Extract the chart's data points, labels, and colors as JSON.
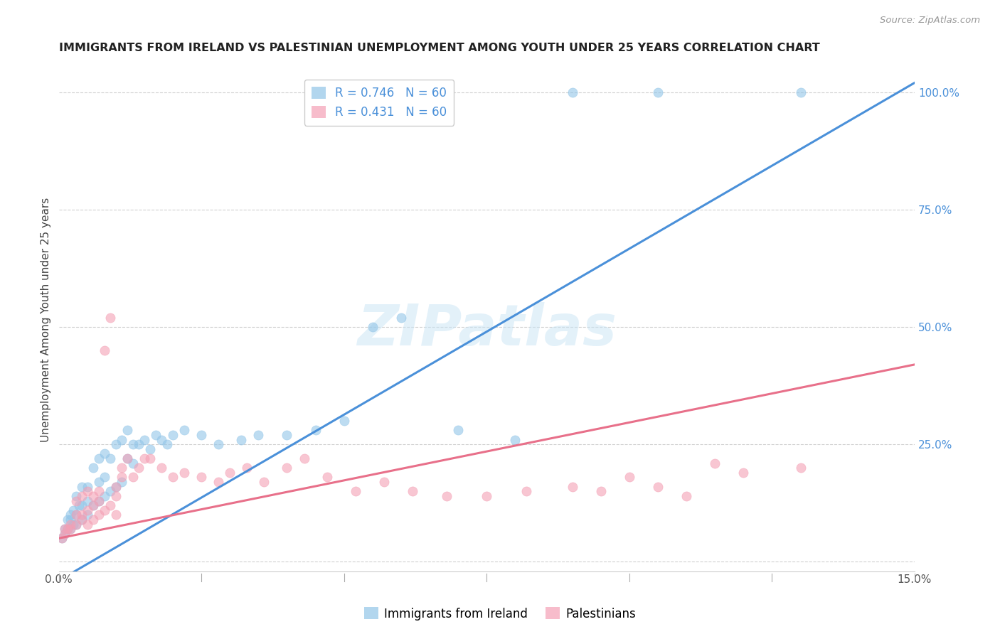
{
  "title": "IMMIGRANTS FROM IRELAND VS PALESTINIAN UNEMPLOYMENT AMONG YOUTH UNDER 25 YEARS CORRELATION CHART",
  "source": "Source: ZipAtlas.com",
  "ylabel": "Unemployment Among Youth under 25 years",
  "right_yticklabels": [
    "",
    "25.0%",
    "50.0%",
    "75.0%",
    "100.0%"
  ],
  "right_yticks": [
    0.0,
    0.25,
    0.5,
    0.75,
    1.0
  ],
  "xlim": [
    0.0,
    0.15
  ],
  "ylim": [
    -0.02,
    1.05
  ],
  "legend1_R": "0.746",
  "legend1_N": "60",
  "legend2_R": "0.431",
  "legend2_N": "60",
  "blue_color": "#92c5e8",
  "pink_color": "#f4a0b5",
  "blue_line_color": "#4a90d9",
  "pink_line_color": "#e8708a",
  "background_color": "#ffffff",
  "watermark": "ZIPatlas",
  "blue_line_x0": 0.0,
  "blue_line_y0": -0.04,
  "blue_line_x1": 0.15,
  "blue_line_y1": 1.02,
  "pink_line_x0": 0.0,
  "pink_line_y0": 0.05,
  "pink_line_x1": 0.15,
  "pink_line_y1": 0.42,
  "blue_scatter_x": [
    0.0005,
    0.001,
    0.001,
    0.0015,
    0.0015,
    0.002,
    0.002,
    0.002,
    0.0025,
    0.0025,
    0.003,
    0.003,
    0.003,
    0.0035,
    0.004,
    0.004,
    0.004,
    0.005,
    0.005,
    0.005,
    0.006,
    0.006,
    0.007,
    0.007,
    0.007,
    0.008,
    0.008,
    0.008,
    0.009,
    0.009,
    0.01,
    0.01,
    0.011,
    0.011,
    0.012,
    0.012,
    0.013,
    0.013,
    0.014,
    0.015,
    0.016,
    0.017,
    0.018,
    0.019,
    0.02,
    0.022,
    0.025,
    0.028,
    0.032,
    0.035,
    0.04,
    0.045,
    0.05,
    0.055,
    0.06,
    0.07,
    0.08,
    0.09,
    0.105,
    0.13
  ],
  "blue_scatter_y": [
    0.05,
    0.06,
    0.07,
    0.07,
    0.09,
    0.07,
    0.09,
    0.1,
    0.08,
    0.11,
    0.08,
    0.1,
    0.14,
    0.12,
    0.09,
    0.12,
    0.16,
    0.1,
    0.13,
    0.16,
    0.12,
    0.2,
    0.13,
    0.17,
    0.22,
    0.14,
    0.18,
    0.23,
    0.15,
    0.22,
    0.16,
    0.25,
    0.17,
    0.26,
    0.22,
    0.28,
    0.21,
    0.25,
    0.25,
    0.26,
    0.24,
    0.27,
    0.26,
    0.25,
    0.27,
    0.28,
    0.27,
    0.25,
    0.26,
    0.27,
    0.27,
    0.28,
    0.3,
    0.5,
    0.52,
    0.28,
    0.26,
    1.0,
    1.0,
    1.0
  ],
  "pink_scatter_x": [
    0.0005,
    0.001,
    0.001,
    0.0015,
    0.002,
    0.002,
    0.003,
    0.003,
    0.004,
    0.004,
    0.005,
    0.005,
    0.006,
    0.006,
    0.007,
    0.007,
    0.008,
    0.009,
    0.01,
    0.01,
    0.011,
    0.012,
    0.013,
    0.014,
    0.015,
    0.016,
    0.018,
    0.02,
    0.022,
    0.025,
    0.028,
    0.03,
    0.033,
    0.036,
    0.04,
    0.043,
    0.047,
    0.052,
    0.057,
    0.062,
    0.068,
    0.075,
    0.082,
    0.09,
    0.095,
    0.1,
    0.105,
    0.11,
    0.115,
    0.12,
    0.003,
    0.004,
    0.005,
    0.006,
    0.007,
    0.008,
    0.009,
    0.01,
    0.011,
    0.13
  ],
  "pink_scatter_y": [
    0.05,
    0.06,
    0.07,
    0.07,
    0.08,
    0.07,
    0.08,
    0.1,
    0.09,
    0.1,
    0.08,
    0.11,
    0.09,
    0.12,
    0.1,
    0.13,
    0.11,
    0.12,
    0.1,
    0.14,
    0.2,
    0.22,
    0.18,
    0.2,
    0.22,
    0.22,
    0.2,
    0.18,
    0.19,
    0.18,
    0.17,
    0.19,
    0.2,
    0.17,
    0.2,
    0.22,
    0.18,
    0.15,
    0.17,
    0.15,
    0.14,
    0.14,
    0.15,
    0.16,
    0.15,
    0.18,
    0.16,
    0.14,
    0.21,
    0.19,
    0.13,
    0.14,
    0.15,
    0.14,
    0.15,
    0.45,
    0.52,
    0.16,
    0.18,
    0.2
  ]
}
